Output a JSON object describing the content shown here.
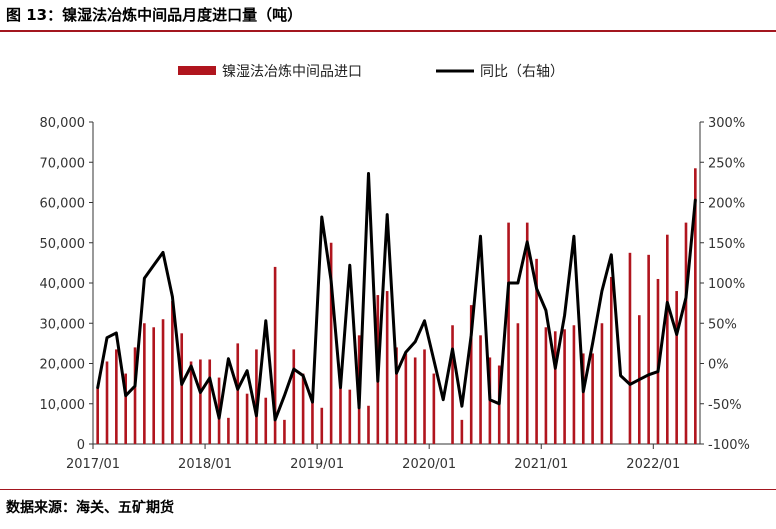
{
  "figure": {
    "title": "图 13：镍湿法冶炼中间品月度进口量（吨）",
    "source": "数据来源：海关、五矿期货"
  },
  "chart_data": {
    "type": "bar",
    "x_labels": [
      "2017/01",
      "2018/01",
      "2019/01",
      "2020/01",
      "2021/01",
      "2022/01"
    ],
    "y_left_ticks": [
      "80,000",
      "70,000",
      "60,000",
      "50,000",
      "40,000",
      "30,000",
      "20,000",
      "10,000",
      "0"
    ],
    "y_right_ticks": [
      "300%",
      "250%",
      "200%",
      "150%",
      "100%",
      "50%",
      "0%",
      "-50%",
      "-100%"
    ],
    "ylim_left": [
      0,
      80000
    ],
    "ylim_right": [
      -1.0,
      3.0
    ],
    "bar_color": "#b0151e",
    "line_color": "#000000",
    "legend_position": "top-center",
    "months": [
      "2017/01",
      "2017/02",
      "2017/03",
      "2017/04",
      "2017/05",
      "2017/06",
      "2017/07",
      "2017/08",
      "2017/09",
      "2017/10",
      "2017/11",
      "2017/12",
      "2018/01",
      "2018/02",
      "2018/03",
      "2018/04",
      "2018/05",
      "2018/06",
      "2018/07",
      "2018/08",
      "2018/09",
      "2018/10",
      "2018/11",
      "2018/12",
      "2019/01",
      "2019/02",
      "2019/03",
      "2019/04",
      "2019/05",
      "2019/06",
      "2019/07",
      "2019/08",
      "2019/09",
      "2019/10",
      "2019/11",
      "2019/12",
      "2020/01",
      "2020/02",
      "2020/03",
      "2020/04",
      "2020/05",
      "2020/06",
      "2020/07",
      "2020/08",
      "2020/09",
      "2020/10",
      "2020/11",
      "2020/12",
      "2021/01",
      "2021/02",
      "2021/03",
      "2021/04",
      "2021/05",
      "2021/06",
      "2021/07",
      "2021/08",
      "2021/09",
      "2021/10",
      "2021/11",
      "2021/12",
      "2022/01",
      "2022/02",
      "2022/03",
      "2022/04",
      "2022/05"
    ],
    "series": [
      {
        "name": "镍湿法冶炼中间品进口",
        "axis": "left",
        "type": "bar",
        "values": [
          14000,
          20500,
          23500,
          17500,
          24000,
          30000,
          29000,
          31000,
          35500,
          27500,
          20500,
          21000,
          21000,
          16500,
          6500,
          25000,
          12500,
          23500,
          11500,
          44000,
          6000,
          23500,
          17500,
          12500,
          9000,
          50000,
          14000,
          13500,
          27000,
          9500,
          37000,
          38000,
          24000,
          22500,
          21500,
          23500,
          17500,
          0,
          29500,
          6000,
          34500,
          27000,
          21500,
          19500,
          55000,
          30000,
          55000,
          46000,
          29000,
          28000,
          28500,
          29500,
          22500,
          22500,
          30000,
          41500,
          0,
          47500,
          32000,
          47000,
          41000,
          52000,
          38000,
          55000,
          68500
        ]
      },
      {
        "name": "同比（右轴）",
        "axis": "right",
        "type": "line",
        "values": [
          -0.3,
          0.32,
          0.38,
          -0.4,
          -0.28,
          1.06,
          1.22,
          1.38,
          0.83,
          -0.26,
          -0.03,
          -0.36,
          -0.18,
          -0.68,
          0.06,
          -0.32,
          -0.09,
          -0.65,
          0.53,
          -0.7,
          -0.4,
          -0.07,
          -0.15,
          -0.48,
          1.82,
          1.03,
          -0.3,
          1.22,
          -0.55,
          2.36,
          -0.22,
          1.85,
          -0.12,
          0.14,
          0.27,
          0.53,
          0.04,
          -0.45,
          0.18,
          -0.53,
          0.35,
          1.58,
          -0.45,
          -0.5,
          1.0,
          1.0,
          1.51,
          0.93,
          0.66,
          -0.06,
          0.6,
          1.58,
          -0.35,
          0.25,
          0.9,
          1.35,
          -0.15,
          -0.26,
          -0.2,
          -0.14,
          -0.1,
          0.76,
          0.36,
          0.82,
          2.03
        ]
      }
    ]
  }
}
